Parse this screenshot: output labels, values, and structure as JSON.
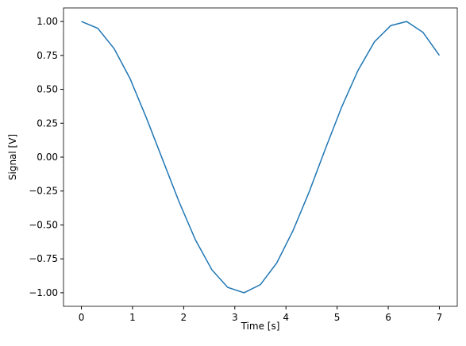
{
  "chart_data": {
    "type": "line",
    "xlabel": "Time [s]",
    "ylabel": "Signal [V]",
    "x": [
      0,
      0.32,
      0.64,
      0.95,
      1.27,
      1.59,
      1.91,
      2.23,
      2.55,
      2.86,
      3.18,
      3.5,
      3.82,
      4.14,
      4.45,
      4.77,
      5.09,
      5.41,
      5.73,
      6.05,
      6.36,
      6.68,
      7
    ],
    "series": [
      {
        "color": "#1f77b4",
        "values": [
          1.0,
          0.95,
          0.8,
          0.58,
          0.29,
          -0.02,
          -0.33,
          -0.61,
          -0.83,
          -0.96,
          -1.0,
          -0.94,
          -0.78,
          -0.54,
          -0.26,
          0.06,
          0.37,
          0.64,
          0.85,
          0.97,
          1.0,
          0.92,
          0.75
        ]
      }
    ],
    "xlim": [
      -0.35,
      7.35
    ],
    "ylim": [
      -1.1,
      1.1
    ],
    "xticks": [
      0,
      1,
      2,
      3,
      4,
      5,
      6,
      7
    ],
    "yticks": [
      {
        "value": -1,
        "label": "−1.00"
      },
      {
        "value": -0.75,
        "label": "−0.75"
      },
      {
        "value": -0.5,
        "label": "−0.50"
      },
      {
        "value": -0.25,
        "label": "−0.25"
      },
      {
        "value": 0,
        "label": "0.00"
      },
      {
        "value": 0.25,
        "label": "0.25"
      },
      {
        "value": 0.5,
        "label": "0.50"
      },
      {
        "value": 0.75,
        "label": "0.75"
      },
      {
        "value": 1,
        "label": "1.00"
      }
    ]
  }
}
